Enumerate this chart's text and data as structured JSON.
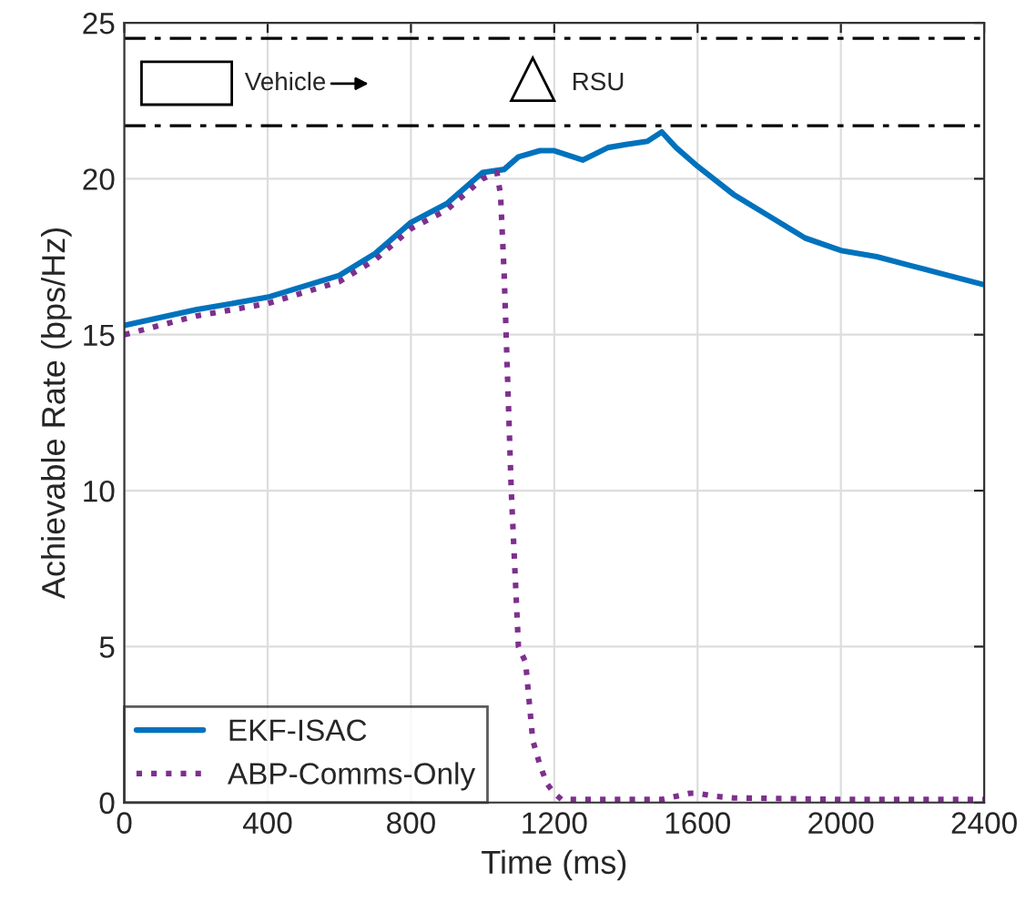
{
  "chart_data": {
    "type": "line",
    "xlabel": "Time (ms)",
    "ylabel": "Achievable Rate (bps/Hz)",
    "xlim": [
      0,
      2400
    ],
    "ylim": [
      0,
      25
    ],
    "xticks": [
      0,
      400,
      800,
      1200,
      1600,
      2000,
      2400
    ],
    "yticks": [
      0,
      5,
      10,
      15,
      20,
      25
    ],
    "grid": true,
    "legend": "bottom left",
    "series": [
      {
        "name": "EKF-ISAC",
        "color": "#0072bd",
        "line_style": "solid",
        "x": [
          0,
          200,
          400,
          600,
          700,
          800,
          900,
          1000,
          1060,
          1100,
          1160,
          1200,
          1280,
          1350,
          1400,
          1460,
          1500,
          1540,
          1600,
          1700,
          1800,
          1900,
          2000,
          2100,
          2200,
          2300,
          2400
        ],
        "values": [
          15.3,
          15.8,
          16.2,
          16.9,
          17.6,
          18.6,
          19.2,
          20.2,
          20.3,
          20.7,
          20.9,
          20.9,
          20.6,
          21.0,
          21.1,
          21.2,
          21.5,
          21.0,
          20.4,
          19.5,
          18.8,
          18.1,
          17.7,
          17.5,
          17.2,
          16.9,
          16.6
        ]
      },
      {
        "name": "ABP-Comms-Only",
        "color": "#7e2f8e",
        "line_style": "dotted",
        "x": [
          0,
          200,
          400,
          600,
          700,
          800,
          900,
          1000,
          1040,
          1050,
          1060,
          1080,
          1100,
          1120,
          1140,
          1160,
          1180,
          1200,
          1220,
          1400,
          1500,
          1580,
          1600,
          1650,
          1700,
          2000,
          2400
        ],
        "values": [
          15.0,
          15.6,
          16.0,
          16.7,
          17.4,
          18.4,
          19.0,
          20.0,
          20.2,
          19.5,
          17.0,
          10.0,
          5.0,
          4.5,
          2.0,
          1.2,
          0.6,
          0.3,
          0.1,
          0.1,
          0.1,
          0.3,
          0.3,
          0.2,
          0.15,
          0.1,
          0.1
        ]
      }
    ],
    "ref_lines": [
      {
        "axis": "y",
        "value": 24.5,
        "color": "#000000",
        "line_style": "dashed"
      },
      {
        "axis": "y",
        "value": 21.7,
        "color": "#000000",
        "line_style": "dashed"
      }
    ],
    "annotations": [
      "Vehicle",
      "RSU"
    ]
  }
}
